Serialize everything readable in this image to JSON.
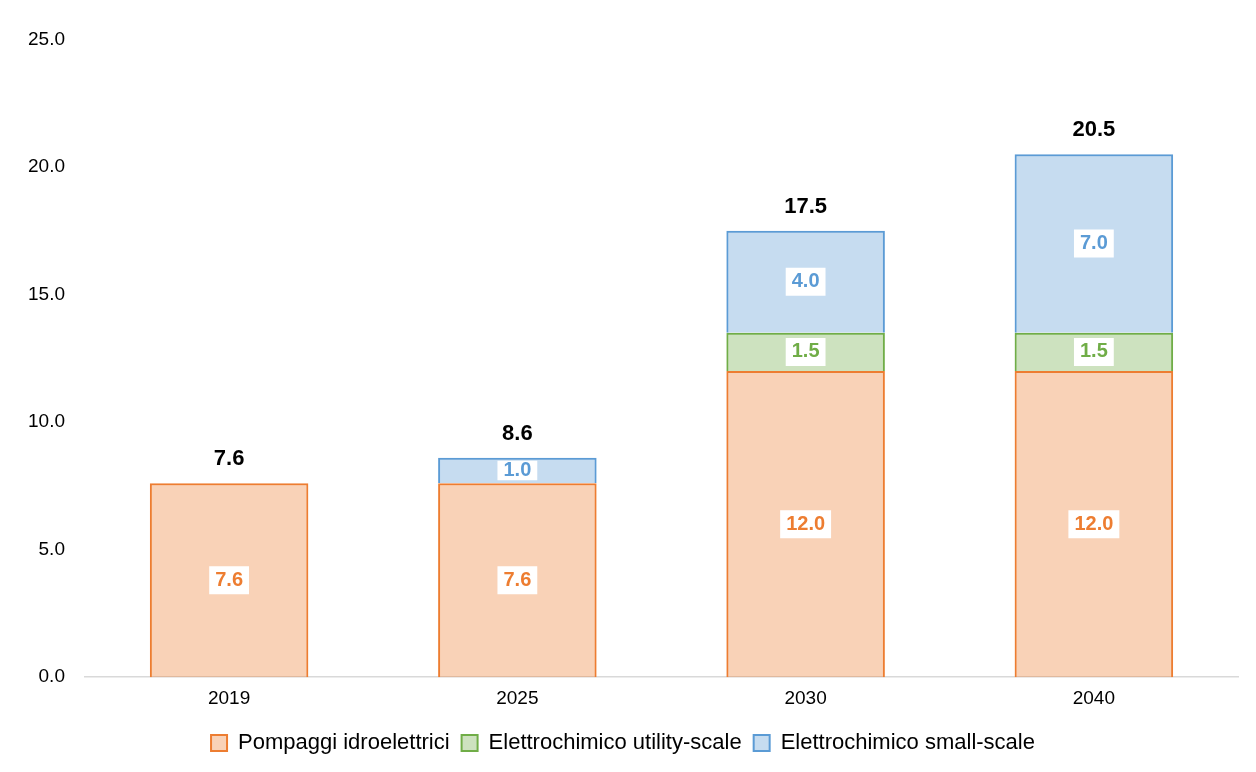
{
  "chart_data": {
    "type": "bar",
    "stacked": true,
    "categories": [
      "2019",
      "2025",
      "2030",
      "2040"
    ],
    "series": [
      {
        "name": "Pompaggi idroelettrici",
        "color": "#ed7d31",
        "values": [
          7.6,
          7.6,
          12.0,
          12.0
        ],
        "value_labels": [
          "7.6",
          "7.6",
          "12.0",
          "12.0"
        ]
      },
      {
        "name": "Elettrochimico utility-scale",
        "color": "#70ad47",
        "values": [
          null,
          null,
          1.5,
          1.5
        ],
        "value_labels": [
          null,
          null,
          "1.5",
          "1.5"
        ]
      },
      {
        "name": "Elettrochimico small-scale",
        "color": "#5b9bd5",
        "values": [
          null,
          1.0,
          4.0,
          7.0
        ],
        "value_labels": [
          null,
          "1.0",
          "4.0",
          "7.0"
        ]
      }
    ],
    "ylim": [
      0,
      25
    ],
    "yticks": [
      {
        "value": 0,
        "label": "0.0"
      },
      {
        "value": 5,
        "label": "5.0"
      },
      {
        "value": 10,
        "label": "10.0"
      },
      {
        "value": 15,
        "label": "15.0"
      },
      {
        "value": 20,
        "label": "20.0"
      },
      {
        "value": 25,
        "label": "25.0"
      }
    ],
    "totals": [
      "7.6",
      "8.6",
      "17.5",
      "20.5"
    ],
    "grid": false,
    "legend": "bottom"
  }
}
